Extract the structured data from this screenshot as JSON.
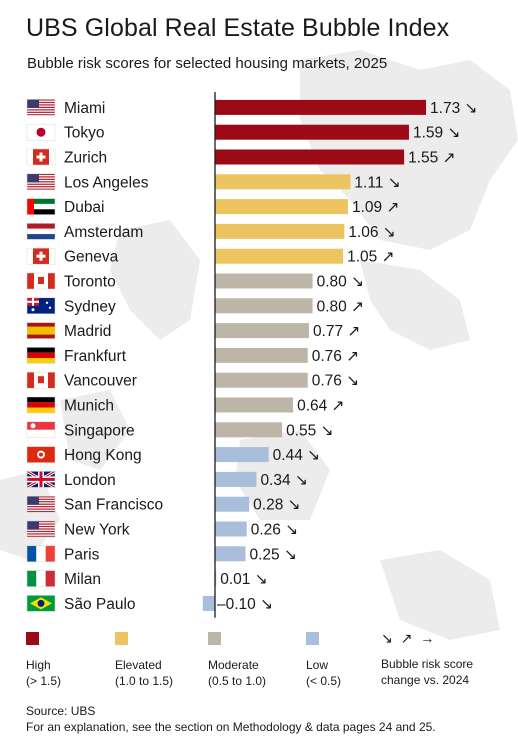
{
  "header": {
    "title": "UBS Global Real Estate Bubble Index",
    "subtitle": "Bubble risk scores for selected housing markets, 2025"
  },
  "colors": {
    "high": "#9b0a16",
    "elevated": "#edc560",
    "moderate": "#bdb6a8",
    "low": "#a8bedb"
  },
  "chart_data": {
    "type": "bar",
    "orientation": "horizontal",
    "title": "UBS Global Real Estate Bubble Index",
    "subtitle": "Bubble risk scores for selected housing markets, 2025",
    "categories": [
      "Miami",
      "Tokyo",
      "Zurich",
      "Los Angeles",
      "Dubai",
      "Amsterdam",
      "Geneva",
      "Toronto",
      "Sydney",
      "Madrid",
      "Frankfurt",
      "Vancouver",
      "Munich",
      "Singapore",
      "Hong Kong",
      "London",
      "San Francisco",
      "New York",
      "Paris",
      "Milan",
      "São Paulo"
    ],
    "values": [
      1.73,
      1.59,
      1.55,
      1.11,
      1.09,
      1.06,
      1.05,
      0.8,
      0.8,
      0.77,
      0.76,
      0.76,
      0.64,
      0.55,
      0.44,
      0.34,
      0.28,
      0.26,
      0.25,
      0.01,
      -0.1
    ],
    "labels": [
      "1.73",
      "1.59",
      "1.55",
      "1.11",
      "1.09",
      "1.06",
      "1.05",
      "0.80",
      "0.80",
      "0.77",
      "0.76",
      "0.76",
      "0.64",
      "0.55",
      "0.44",
      "0.34",
      "0.28",
      "0.26",
      "0.25",
      "0.01",
      "–0.10"
    ],
    "risk": [
      "high",
      "high",
      "high",
      "elevated",
      "elevated",
      "elevated",
      "elevated",
      "moderate",
      "moderate",
      "moderate",
      "moderate",
      "moderate",
      "moderate",
      "moderate",
      "low",
      "low",
      "low",
      "low",
      "low",
      "low",
      "low"
    ],
    "trend": [
      "down",
      "down",
      "up",
      "down",
      "up",
      "down",
      "up",
      "down",
      "up",
      "up",
      "up",
      "down",
      "up",
      "down",
      "down",
      "down",
      "down",
      "down",
      "down",
      "down",
      "down"
    ],
    "flags": [
      "us-flag-icon",
      "japan-flag-icon",
      "switzerland-flag-icon",
      "us-flag-icon",
      "uae-flag-icon",
      "netherlands-flag-icon",
      "switzerland-flag-icon",
      "canada-flag-icon",
      "australia-flag-icon",
      "spain-flag-icon",
      "germany-flag-icon",
      "canada-flag-icon",
      "germany-flag-icon",
      "singapore-flag-icon",
      "hong-kong-flag-icon",
      "uk-flag-icon",
      "us-flag-icon",
      "us-flag-icon",
      "france-flag-icon",
      "italy-flag-icon",
      "brazil-flag-icon"
    ],
    "xlim": [
      -0.1,
      1.73
    ],
    "grid": false
  },
  "legend": {
    "high": {
      "label": "High",
      "range": "(> 1.5)"
    },
    "elevated": {
      "label": "Elevated",
      "range": "(1.0 to 1.5)"
    },
    "moderate": {
      "label": "Moderate",
      "range": "(0.5 to 1.0)"
    },
    "low": {
      "label": "Low",
      "range": "(< 0.5)"
    },
    "arrows": {
      "symbols": "↘ ↗ →",
      "line1": "Bubble risk score",
      "line2": "change vs. 2024"
    }
  },
  "footer": {
    "source": "Source: UBS",
    "note": "For an explanation, see the section on Methodology & data pages 24 and 25."
  }
}
